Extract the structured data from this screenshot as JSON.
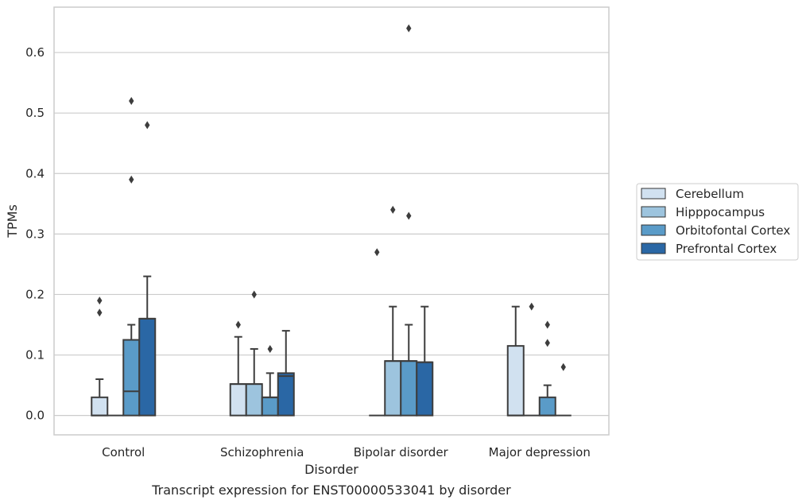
{
  "chart_data": {
    "type": "box",
    "title": "",
    "caption": "Transcript expression for ENST00000533041 by disorder",
    "xlabel": "Disorder",
    "ylabel": "TPMs",
    "ylim": [
      -0.032,
      0.675
    ],
    "yticks": [
      "0.0",
      "0.1",
      "0.2",
      "0.3",
      "0.4",
      "0.5",
      "0.6"
    ],
    "grid": true,
    "legend_position": "right",
    "categories": [
      "Control",
      "Schizophrenia",
      "Bipolar disorder",
      "Major depression"
    ],
    "series": [
      {
        "name": "Cerebellum",
        "color": "#d1e1f0",
        "boxes": [
          {
            "q1": 0,
            "median": 0,
            "q3": 0.03,
            "whisker_low": 0,
            "whisker_high": 0.06,
            "outliers": [
              0.17,
              0.19
            ]
          },
          {
            "q1": 0,
            "median": 0.052,
            "q3": 0.052,
            "whisker_low": 0,
            "whisker_high": 0.13,
            "outliers": [
              0.15
            ]
          },
          {
            "q1": 0,
            "median": 0,
            "q3": 0,
            "whisker_low": 0,
            "whisker_high": 0,
            "outliers": [
              0.27
            ]
          },
          {
            "q1": 0,
            "median": 0,
            "q3": 0.115,
            "whisker_low": 0,
            "whisker_high": 0.18,
            "outliers": []
          }
        ]
      },
      {
        "name": "Hipppocampus",
        "color": "#9dc4de",
        "boxes": [
          {
            "q1": 0,
            "median": 0,
            "q3": 0,
            "whisker_low": 0,
            "whisker_high": 0,
            "outliers": []
          },
          {
            "q1": 0,
            "median": 0.052,
            "q3": 0.052,
            "whisker_low": 0,
            "whisker_high": 0.11,
            "outliers": [
              0.2
            ]
          },
          {
            "q1": 0,
            "median": 0.09,
            "q3": 0.09,
            "whisker_low": 0,
            "whisker_high": 0.18,
            "outliers": [
              0.34
            ]
          },
          {
            "q1": 0,
            "median": 0,
            "q3": 0,
            "whisker_low": 0,
            "whisker_high": 0,
            "outliers": [
              0.18
            ]
          }
        ]
      },
      {
        "name": "Orbitofontal Cortex",
        "color": "#5a9bc8",
        "boxes": [
          {
            "q1": 0,
            "median": 0.04,
            "q3": 0.125,
            "whisker_low": 0,
            "whisker_high": 0.15,
            "outliers": [
              0.39,
              0.52
            ]
          },
          {
            "q1": 0,
            "median": 0.03,
            "q3": 0.03,
            "whisker_low": 0,
            "whisker_high": 0.07,
            "outliers": [
              0.11
            ]
          },
          {
            "q1": 0,
            "median": 0.09,
            "q3": 0.09,
            "whisker_low": 0,
            "whisker_high": 0.15,
            "outliers": [
              0.33,
              0.64
            ]
          },
          {
            "q1": 0,
            "median": 0,
            "q3": 0.03,
            "whisker_low": 0,
            "whisker_high": 0.05,
            "outliers": [
              0.12,
              0.15
            ]
          }
        ]
      },
      {
        "name": "Prefrontal Cortex",
        "color": "#2a67a5",
        "boxes": [
          {
            "q1": 0,
            "median": 0.16,
            "q3": 0.16,
            "whisker_low": 0,
            "whisker_high": 0.23,
            "outliers": [
              0.48
            ]
          },
          {
            "q1": 0,
            "median": 0.065,
            "q3": 0.07,
            "whisker_low": 0,
            "whisker_high": 0.14,
            "outliers": []
          },
          {
            "q1": 0,
            "median": 0.088,
            "q3": 0.088,
            "whisker_low": 0,
            "whisker_high": 0.18,
            "outliers": []
          },
          {
            "q1": 0,
            "median": 0,
            "q3": 0,
            "whisker_low": 0,
            "whisker_high": 0,
            "outliers": [
              0.08
            ]
          }
        ]
      }
    ]
  }
}
